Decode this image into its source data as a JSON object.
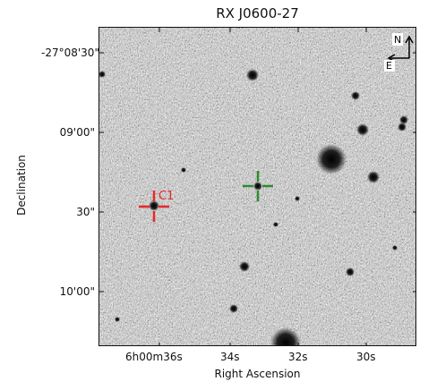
{
  "figure": {
    "title": "RX J0600-27",
    "xlabel": "Right Ascension",
    "ylabel": "Declination",
    "ra_ticks": [
      "6h00m36s",
      "34s",
      "32s",
      "30s"
    ],
    "dec_ticks": [
      "-27°08'30\"",
      "09'00\"",
      "30\"",
      "10'00\""
    ],
    "compass": {
      "north": "N",
      "east": "E"
    },
    "marker_label": "C1",
    "colors": {
      "red_marker": "#e8282a",
      "green_marker": "#2e8b2e",
      "stars": "#000000"
    }
  }
}
